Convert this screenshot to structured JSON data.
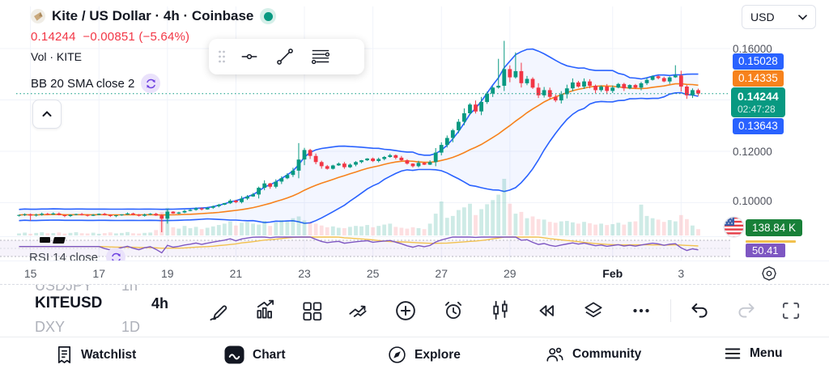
{
  "header": {
    "symbol_title": "Kite / US Dollar · 4h · Coinbase",
    "price": "0.14244",
    "change": "−0.00851",
    "change_pct": "(−5.64%)",
    "vol_label": "Vol · KITE",
    "bb_label": "BB 20 SMA close 2"
  },
  "price_scale": {
    "currency": "USD",
    "level_016": "0.16000",
    "level_012": "0.12000",
    "level_010": "0.10000",
    "bb_upper": "0.15028",
    "bb_basis": "0.14335",
    "last_price": "0.14244",
    "countdown": "02:47:28",
    "bb_lower": "0.13643",
    "volume_value": "138.84 K",
    "rsi_value": "50.41"
  },
  "colors": {
    "up": "#089981",
    "down": "#F23645",
    "bb_band": "#2962FF",
    "bb_basis": "#F7821C",
    "volume_label_bg": "#188038",
    "rsi_line": "#7E57C2",
    "rsi_ma": "#F2C14E",
    "last_label_bg": "#089981"
  },
  "rsi_pane": {
    "label": "RSI 14 close"
  },
  "watchlist_rows": [
    {
      "symbol": "USDJPY",
      "timeframe": "1h"
    },
    {
      "symbol": "KITEUSD",
      "timeframe": "4h"
    },
    {
      "symbol": "DXY",
      "timeframe": "1D"
    }
  ],
  "nav": {
    "items": [
      {
        "id": "watchlist",
        "label": "Watchlist"
      },
      {
        "id": "chart",
        "label": "Chart",
        "active": true
      },
      {
        "id": "explore",
        "label": "Explore"
      },
      {
        "id": "community",
        "label": "Community"
      },
      {
        "id": "menu",
        "label": "Menu"
      }
    ]
  },
  "chart_data": {
    "type": "candlestick",
    "symbol": "KITEUSD",
    "timeframe": "4h",
    "exchange": "Coinbase",
    "ylim": [
      0.088,
      0.166
    ],
    "y_gridlines": [
      0.16,
      0.14,
      0.12,
      0.1
    ],
    "current_price": 0.14244,
    "first_open": 0.095,
    "x_ticks": [
      {
        "index": 2,
        "label": "15"
      },
      {
        "index": 14,
        "label": "17"
      },
      {
        "index": 26,
        "label": "19"
      },
      {
        "index": 38,
        "label": "21"
      },
      {
        "index": 50,
        "label": "23"
      },
      {
        "index": 62,
        "label": "25"
      },
      {
        "index": 74,
        "label": "27"
      },
      {
        "index": 86,
        "label": "29"
      },
      {
        "index": 104,
        "label": "Feb",
        "bold": true
      },
      {
        "index": 116,
        "label": "3"
      }
    ],
    "closes": [
      0.0952,
      0.0955,
      0.095,
      0.0953,
      0.0957,
      0.0954,
      0.0958,
      0.0952,
      0.0948,
      0.0953,
      0.0956,
      0.0952,
      0.0949,
      0.0953,
      0.0957,
      0.0952,
      0.0948,
      0.0951,
      0.0954,
      0.0958,
      0.0953,
      0.0949,
      0.0954,
      0.0957,
      0.095,
      0.0938,
      0.0965,
      0.0958,
      0.0962,
      0.0968,
      0.0972,
      0.0978,
      0.0974,
      0.098,
      0.0986,
      0.0992,
      0.0998,
      0.1008,
      0.1002,
      0.1016,
      0.1024,
      0.1032,
      0.1058,
      0.1075,
      0.1062,
      0.1082,
      0.1095,
      0.1108,
      0.1125,
      0.1168,
      0.1205,
      0.1182,
      0.1158,
      0.1142,
      0.1132,
      0.1145,
      0.1152,
      0.1138,
      0.1148,
      0.1158,
      0.1165,
      0.1172,
      0.1162,
      0.117,
      0.1178,
      0.1185,
      0.1175,
      0.1165,
      0.1152,
      0.1142,
      0.1155,
      0.1148,
      0.1158,
      0.1195,
      0.1225,
      0.1252,
      0.1282,
      0.1315,
      0.1348,
      0.1382,
      0.1355,
      0.1392,
      0.1425,
      0.1448,
      0.1455,
      0.152,
      0.1488,
      0.1512,
      0.1465,
      0.1482,
      0.1448,
      0.1418,
      0.1438,
      0.1412,
      0.1398,
      0.1422,
      0.1445,
      0.1468,
      0.1452,
      0.1472,
      0.1455,
      0.1438,
      0.1452,
      0.1435,
      0.1448,
      0.1462,
      0.1445,
      0.1458,
      0.1448,
      0.1465,
      0.1478,
      0.1492,
      0.1485,
      0.1472,
      0.1488,
      0.1495,
      0.1452,
      0.1418,
      0.1438,
      0.14244
    ],
    "volumes_k": [
      45,
      62,
      38,
      55,
      70,
      48,
      52,
      66,
      41,
      58,
      72,
      50,
      44,
      60,
      38,
      52,
      68,
      46,
      55,
      75,
      48,
      42,
      58,
      64,
      120,
      520,
      610,
      180,
      150,
      210,
      160,
      190,
      140,
      170,
      200,
      230,
      260,
      310,
      220,
      280,
      300,
      260,
      240,
      320,
      210,
      290,
      340,
      310,
      380,
      420,
      330,
      290,
      260,
      220,
      180,
      200,
      170,
      160,
      190,
      210,
      200,
      230,
      180,
      210,
      240,
      260,
      190,
      170,
      150,
      180,
      160,
      140,
      260,
      480,
      750,
      390,
      430,
      560,
      620,
      700,
      450,
      580,
      690,
      780,
      900,
      1250,
      700,
      480,
      520,
      380,
      420,
      360,
      350,
      300,
      280,
      310,
      320,
      290,
      260,
      300,
      270,
      240,
      260,
      230,
      250,
      280,
      240,
      300,
      310,
      680,
      430,
      380,
      350,
      300,
      340,
      310,
      450,
      360,
      220,
      138.84
    ],
    "wick_overrides": {
      "2": {
        "low": 0.093
      },
      "25": {
        "low": 0.0885
      },
      "49": {
        "high": 0.1232
      },
      "84": {
        "high": 0.156
      },
      "85": {
        "high": 0.163
      },
      "87": {
        "high": 0.1585
      },
      "115": {
        "high": 0.1535
      }
    },
    "indicators": {
      "bollinger": {
        "length": 20,
        "mult": 2,
        "band_color": "#2962FF",
        "basis_color": "#F7821C",
        "fill": "rgba(41,98,255,0.055)",
        "last_upper": 0.15028,
        "last_basis": 0.14335,
        "last_lower": 0.13643
      },
      "volume": {
        "last_label": "138.84 K",
        "up_color": "rgba(8,153,129,0.20)",
        "down_color": "rgba(242,54,69,0.16)"
      },
      "rsi": {
        "length": 14,
        "last": 50.41,
        "line_color": "#7E57C2",
        "ma_color": "#F2C14E",
        "band": [
          30,
          70
        ]
      }
    }
  }
}
